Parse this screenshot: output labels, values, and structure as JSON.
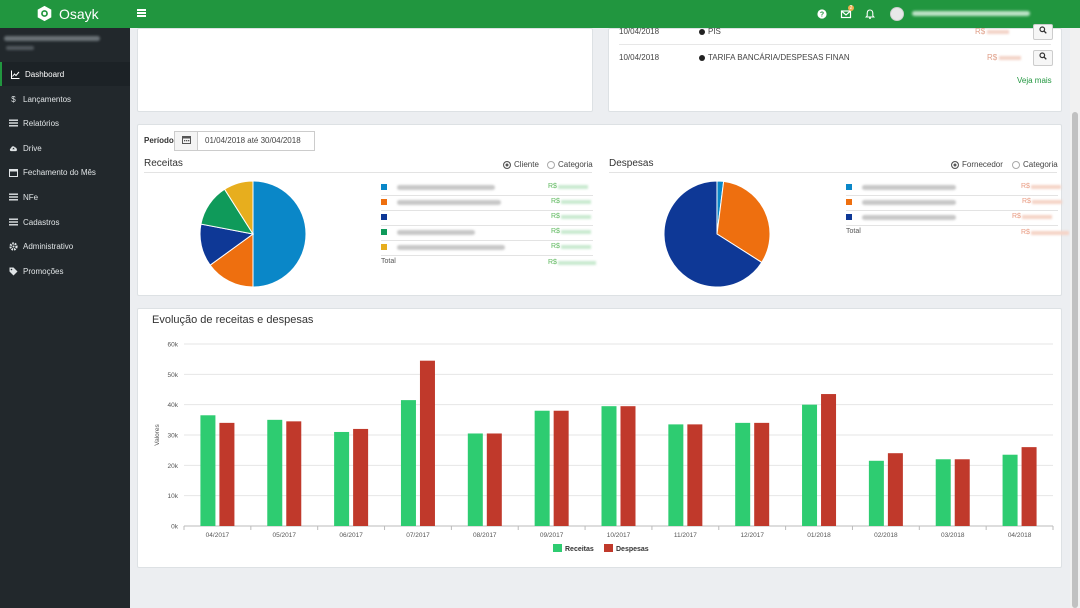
{
  "app": {
    "name": "Osayk"
  },
  "header": {
    "notification_count": "2"
  },
  "sidebar": {
    "items": [
      {
        "label": "Dashboard",
        "icon": "chart-line-icon",
        "active": true
      },
      {
        "label": "Lançamentos",
        "icon": "dollar-icon"
      },
      {
        "label": "Relatórios",
        "icon": "list-icon"
      },
      {
        "label": "Drive",
        "icon": "cloud-upload-icon"
      },
      {
        "label": "Fechamento do Mês",
        "icon": "calendar-icon"
      },
      {
        "label": "NFe",
        "icon": "list-icon"
      },
      {
        "label": "Cadastros",
        "icon": "list-icon"
      },
      {
        "label": "Administrativo",
        "icon": "gear-icon"
      },
      {
        "label": "Promoções",
        "icon": "tag-icon"
      }
    ]
  },
  "transactions": {
    "rows": [
      {
        "date": "10/04/2018",
        "description": "PIS",
        "currency": "R$"
      },
      {
        "date": "10/04/2018",
        "description": "TARIFA BANCÁRIA/DESPESAS FINAN",
        "currency": "R$"
      }
    ],
    "more_link": "Veja mais"
  },
  "periodo": {
    "label": "Período",
    "value": "01/04/2018 até 30/04/2018"
  },
  "receitas": {
    "title": "Receitas",
    "radio_options": [
      "Cliente",
      "Categoria"
    ],
    "selected": "Cliente",
    "total_label": "Total",
    "currency": "R$",
    "colors": [
      "#0a87c8",
      "#ee6f0f",
      "#0e3896",
      "#0f9a5a",
      "#e7ae1e"
    ]
  },
  "despesas": {
    "title": "Despesas",
    "radio_options": [
      "Fornecedor",
      "Categoria"
    ],
    "selected": "Fornecedor",
    "total_label": "Total",
    "currency": "R$",
    "colors": [
      "#0a87c8",
      "#ee6f0f",
      "#0e3896"
    ]
  },
  "evolution": {
    "title": "Evolução de receitas e despesas"
  },
  "chart_data": [
    {
      "type": "pie",
      "title": "Receitas",
      "values": [
        50,
        15,
        13,
        13,
        9
      ],
      "colors": [
        "#0a87c8",
        "#ee6f0f",
        "#0e3896",
        "#0f9a5a",
        "#e7ae1e"
      ]
    },
    {
      "type": "pie",
      "title": "Despesas",
      "values": [
        2,
        32,
        66
      ],
      "colors": [
        "#0a87c8",
        "#ee6f0f",
        "#0e3896"
      ]
    },
    {
      "type": "bar",
      "title": "Evolução de receitas e despesas",
      "categories": [
        "04/2017",
        "05/2017",
        "06/2017",
        "07/2017",
        "08/2017",
        "09/2017",
        "10/2017",
        "11/2017",
        "12/2017",
        "01/2018",
        "02/2018",
        "03/2018",
        "04/2018"
      ],
      "ylabel": "Valores",
      "ylim": [
        0,
        60000
      ],
      "yticks": [
        "0k",
        "10k",
        "20k",
        "30k",
        "40k",
        "50k",
        "60k"
      ],
      "grid": true,
      "legend": "bottom",
      "series": [
        {
          "name": "Receitas",
          "color": "#2ecc71",
          "values": [
            36500,
            35000,
            31000,
            41500,
            30500,
            38000,
            39500,
            33500,
            34000,
            40000,
            21500,
            22000,
            23500
          ]
        },
        {
          "name": "Despesas",
          "color": "#c0392b",
          "values": [
            34000,
            34500,
            32000,
            54500,
            30500,
            38000,
            39500,
            33500,
            34000,
            43500,
            24000,
            22000,
            26000
          ]
        }
      ]
    }
  ]
}
